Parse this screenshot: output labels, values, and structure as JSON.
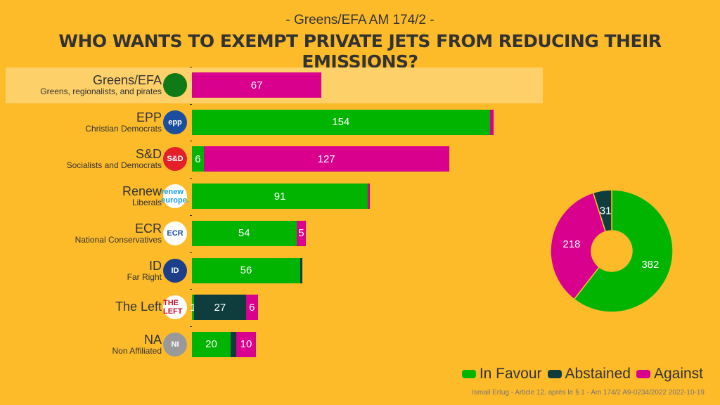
{
  "header": {
    "subtitle": "- Greens/EFA AM 174/2 -",
    "title": "WHO WANTS TO EXEMPT PRIVATE JETS FROM REDUCING THEIR EMISSIONS?"
  },
  "colors": {
    "favour": "#00b400",
    "abstained": "#0f3d3e",
    "against": "#d8008c",
    "highlight": "#fed069",
    "background": "#fdbb2a"
  },
  "chart_data": {
    "type": "bar",
    "orientation": "horizontal",
    "stacked": true,
    "categories": [
      "Greens/EFA",
      "EPP",
      "S&D",
      "Renew",
      "ECR",
      "ID",
      "The Left",
      "NA"
    ],
    "descriptions": [
      "Greens, regionalists, and pirates",
      "Christian Democrats",
      "Socialists and Democrats",
      "Liberals",
      "National Conservatives",
      "Far Right",
      "",
      "Non Affiliated"
    ],
    "logos": [
      "greens-efa-logo",
      "epp-logo",
      "s-and-d-logo",
      "renew-europe-logo",
      "ecr-logo",
      "id-logo",
      "the-left-logo",
      "ni-logo"
    ],
    "logo_text": [
      "",
      "epp",
      "S&D",
      "renew europe.",
      "ECR",
      "ID",
      "THE LEFT",
      "NI"
    ],
    "highlighted": "Greens/EFA",
    "series": [
      {
        "name": "In Favour",
        "values": [
          0,
          154,
          6,
          91,
          54,
          56,
          1,
          20
        ]
      },
      {
        "name": "Abstained",
        "values": [
          0,
          0,
          0,
          0,
          0,
          1,
          27,
          3
        ]
      },
      {
        "name": "Against",
        "values": [
          67,
          2,
          127,
          1,
          5,
          0,
          6,
          10
        ]
      }
    ],
    "visible_labels": [
      [
        "0",
        null,
        "67"
      ],
      [
        "154",
        null,
        null
      ],
      [
        "6",
        null,
        "127"
      ],
      [
        "91",
        null,
        null
      ],
      [
        "54",
        null,
        "5"
      ],
      [
        "56",
        null,
        null
      ],
      [
        "1",
        "27",
        "6"
      ],
      [
        "20",
        null,
        "10"
      ]
    ],
    "donut": {
      "order": [
        "In Favour",
        "Against",
        "Abstained"
      ],
      "values": [
        382,
        218,
        31
      ]
    },
    "legend": [
      "In Favour",
      "Abstained",
      "Against"
    ],
    "legend_position": "bottom-right"
  },
  "footer": {
    "source": "Ismail Ertug - Article 12, après le § 1 - Am 174/2 A9-0234/2022 2022-10-19"
  }
}
